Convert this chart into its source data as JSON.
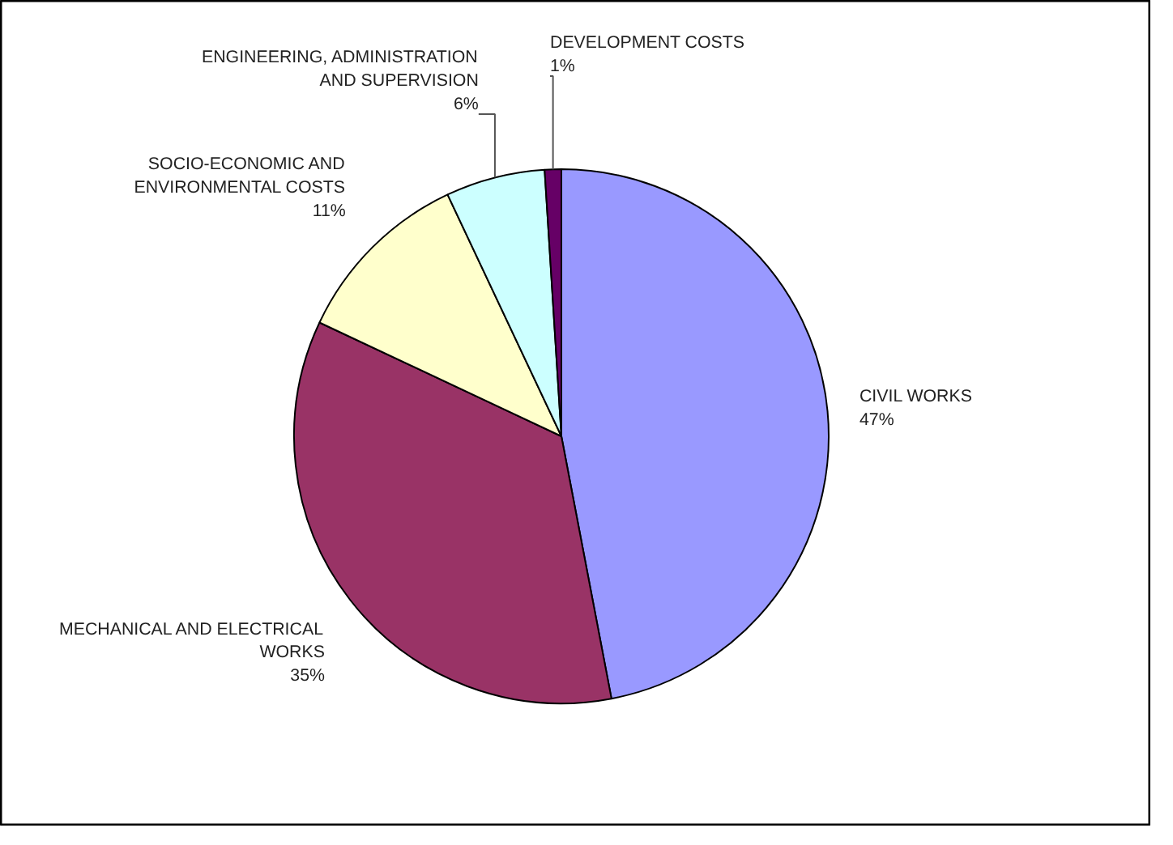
{
  "chart_data": {
    "type": "pie",
    "categories": [
      "CIVIL WORKS",
      "MECHANICAL AND ELECTRICAL WORKS",
      "SOCIO-ECONOMIC AND ENVIRONMENTAL COSTS",
      "ENGINEERING, ADMINISTRATION AND SUPERVISION",
      "DEVELOPMENT COSTS"
    ],
    "values": [
      47,
      35,
      11,
      6,
      1
    ],
    "value_labels": [
      "47%",
      "35%",
      "11%",
      "6%",
      "1%"
    ],
    "colors": [
      "#9999ff",
      "#993366",
      "#ffffcc",
      "#ccffff",
      "#660066"
    ]
  }
}
